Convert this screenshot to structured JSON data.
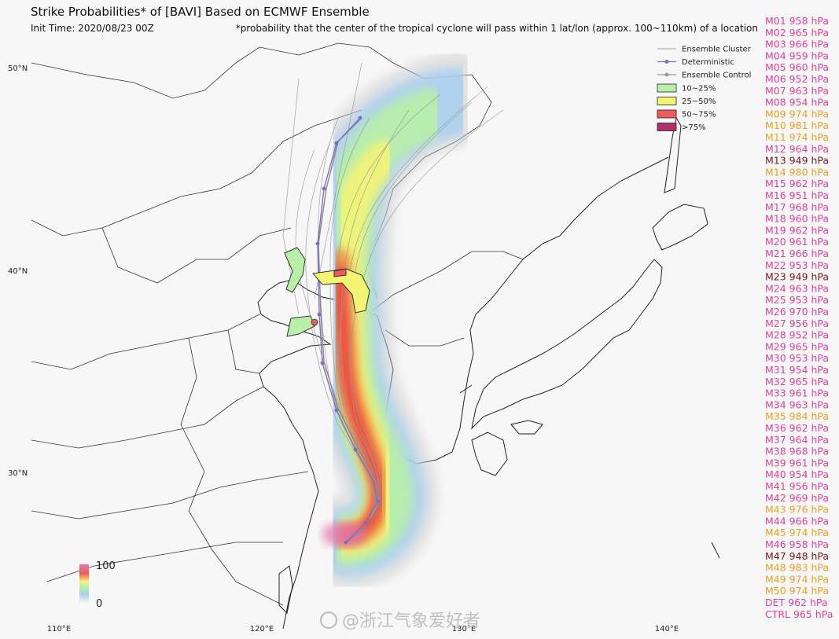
{
  "header": {
    "title": "Strike Probabilities* of [BAVI] Based on ECMWF Ensemble",
    "init_time": "Init Time: 2020/08/23 00Z",
    "note": "*probability that the center of the tropical cyclone will pass within 1 lat/lon (approx. 100~110km) of a location"
  },
  "legend": {
    "lines": [
      {
        "label": "Ensemble Cluster",
        "color": "#b0b0b0",
        "marker": false
      },
      {
        "label": "Deterministic",
        "color": "#7b6fc8",
        "marker": true
      },
      {
        "label": "Ensemble Control",
        "color": "#999999",
        "marker": true
      }
    ],
    "bands": [
      {
        "label": "10~25%",
        "color": "#b8f0a8"
      },
      {
        "label": "25~50%",
        "color": "#f4f474"
      },
      {
        "label": "50~75%",
        "color": "#f05a5a"
      },
      {
        "label": ">75%",
        "color": "#b0306a"
      }
    ]
  },
  "colorbar": {
    "max": 100,
    "min": 0
  },
  "axes": {
    "latitudes": [
      "50°N",
      "40°N",
      "30°N"
    ],
    "longitudes": [
      "110°E",
      "120°E",
      "130°E",
      "140°E"
    ]
  },
  "members": [
    {
      "text": "M01 958 hPa",
      "color": "#e0409a"
    },
    {
      "text": "M02 965 hPa",
      "color": "#e0409a"
    },
    {
      "text": "M03 966 hPa",
      "color": "#e0409a"
    },
    {
      "text": "M04 959 hPa",
      "color": "#e0409a"
    },
    {
      "text": "M05 960 hPa",
      "color": "#e0409a"
    },
    {
      "text": "M06 952 hPa",
      "color": "#e0409a"
    },
    {
      "text": "M07 963 hPa",
      "color": "#e0409a"
    },
    {
      "text": "M08 954 hPa",
      "color": "#e0409a"
    },
    {
      "text": "M09 974 hPa",
      "color": "#e8a020"
    },
    {
      "text": "M10 981 hPa",
      "color": "#e8a020"
    },
    {
      "text": "M11 974 hPa",
      "color": "#e8a020"
    },
    {
      "text": "M12 964 hPa",
      "color": "#e0409a"
    },
    {
      "text": "M13 949 hPa",
      "color": "#7a1818"
    },
    {
      "text": "M14 980 hPa",
      "color": "#e8a020"
    },
    {
      "text": "M15 962 hPa",
      "color": "#e0409a"
    },
    {
      "text": "M16 951 hPa",
      "color": "#e0409a"
    },
    {
      "text": "M17 968 hPa",
      "color": "#e0409a"
    },
    {
      "text": "M18 960 hPa",
      "color": "#e0409a"
    },
    {
      "text": "M19 962 hPa",
      "color": "#e0409a"
    },
    {
      "text": "M20 961 hPa",
      "color": "#e0409a"
    },
    {
      "text": "M21 966 hPa",
      "color": "#e0409a"
    },
    {
      "text": "M22 953 hPa",
      "color": "#e0409a"
    },
    {
      "text": "M23 949 hPa",
      "color": "#7a1818"
    },
    {
      "text": "M24 963 hPa",
      "color": "#e0409a"
    },
    {
      "text": "M25 953 hPa",
      "color": "#e0409a"
    },
    {
      "text": "M26 970 hPa",
      "color": "#e0409a"
    },
    {
      "text": "M27 956 hPa",
      "color": "#e0409a"
    },
    {
      "text": "M28 952 hPa",
      "color": "#e0409a"
    },
    {
      "text": "M29 965 hPa",
      "color": "#e0409a"
    },
    {
      "text": "M30 953 hPa",
      "color": "#e0409a"
    },
    {
      "text": "M31 954 hPa",
      "color": "#e0409a"
    },
    {
      "text": "M32 965 hPa",
      "color": "#e0409a"
    },
    {
      "text": "M33 961 hPa",
      "color": "#e0409a"
    },
    {
      "text": "M34 963 hPa",
      "color": "#e0409a"
    },
    {
      "text": "M35 984 hPa",
      "color": "#e8a020"
    },
    {
      "text": "M36 962 hPa",
      "color": "#e0409a"
    },
    {
      "text": "M37 964 hPa",
      "color": "#e0409a"
    },
    {
      "text": "M38 968 hPa",
      "color": "#e0409a"
    },
    {
      "text": "M39 961 hPa",
      "color": "#e0409a"
    },
    {
      "text": "M40 954 hPa",
      "color": "#e0409a"
    },
    {
      "text": "M41 956 hPa",
      "color": "#e0409a"
    },
    {
      "text": "M42 969 hPa",
      "color": "#e0409a"
    },
    {
      "text": "M43 976 hPa",
      "color": "#e8a020"
    },
    {
      "text": "M44 966 hPa",
      "color": "#e0409a"
    },
    {
      "text": "M45 974 hPa",
      "color": "#e8a020"
    },
    {
      "text": "M46 958 hPa",
      "color": "#e0409a"
    },
    {
      "text": "M47 948 hPa",
      "color": "#7a1818"
    },
    {
      "text": "M48 983 hPa",
      "color": "#e8a020"
    },
    {
      "text": "M49 974 hPa",
      "color": "#e8a020"
    },
    {
      "text": "M50 974 hPa",
      "color": "#e8a020"
    },
    {
      "text": "DET 962 hPa",
      "color": "#e0409a"
    },
    {
      "text": "CTRL 965 hPa",
      "color": "#e0409a"
    }
  ],
  "watermark": "@浙江气象爱好者"
}
